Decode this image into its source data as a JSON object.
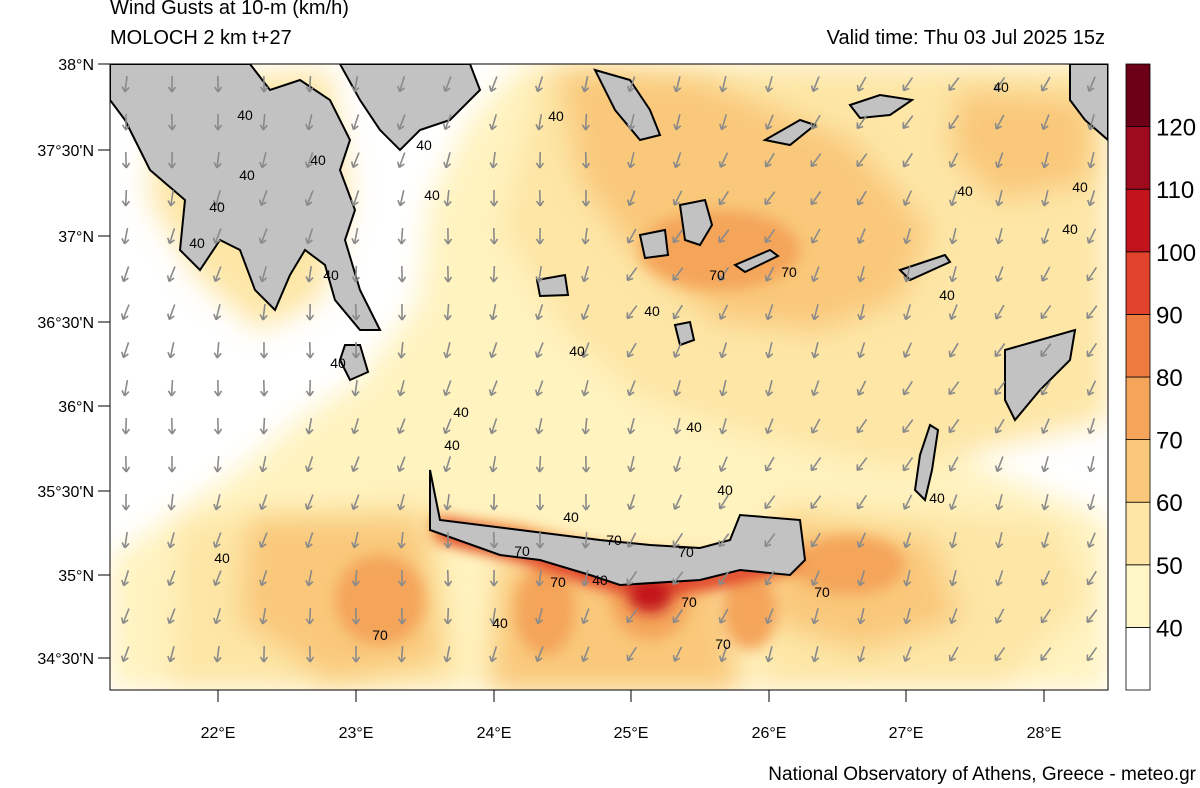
{
  "header": {
    "title": "Wind Gusts at 10-m (km/h)",
    "subtitle": "MOLOCH 2 km t+27",
    "valid_time": "Valid time: Thu 03 Jul 2025 15z"
  },
  "footer": {
    "credit": "National Observatory of Athens, Greece - meteo.gr"
  },
  "axes": {
    "lat_labels": [
      "38°N",
      "37°30'N",
      "37°N",
      "36°30'N",
      "36°N",
      "35°30'N",
      "35°N",
      "34°30'N"
    ],
    "lon_labels": [
      "22°E",
      "23°E",
      "24°E",
      "25°E",
      "26°E",
      "27°E",
      "28°E"
    ]
  },
  "colorbar": {
    "levels": [
      "40",
      "50",
      "60",
      "70",
      "80",
      "90",
      "100",
      "110",
      "120"
    ],
    "colors": [
      "#ffffff",
      "#fff6c8",
      "#fde6a6",
      "#f9c87a",
      "#f4a55a",
      "#ee7a40",
      "#e0422b",
      "#c3141e",
      "#9e0a1e",
      "#6b0016"
    ]
  },
  "contour_labels": [
    "40",
    "70"
  ],
  "palette": {
    "land": "#c2c2c2",
    "coast": "#000000",
    "arrow": "#8a8a8a"
  }
}
